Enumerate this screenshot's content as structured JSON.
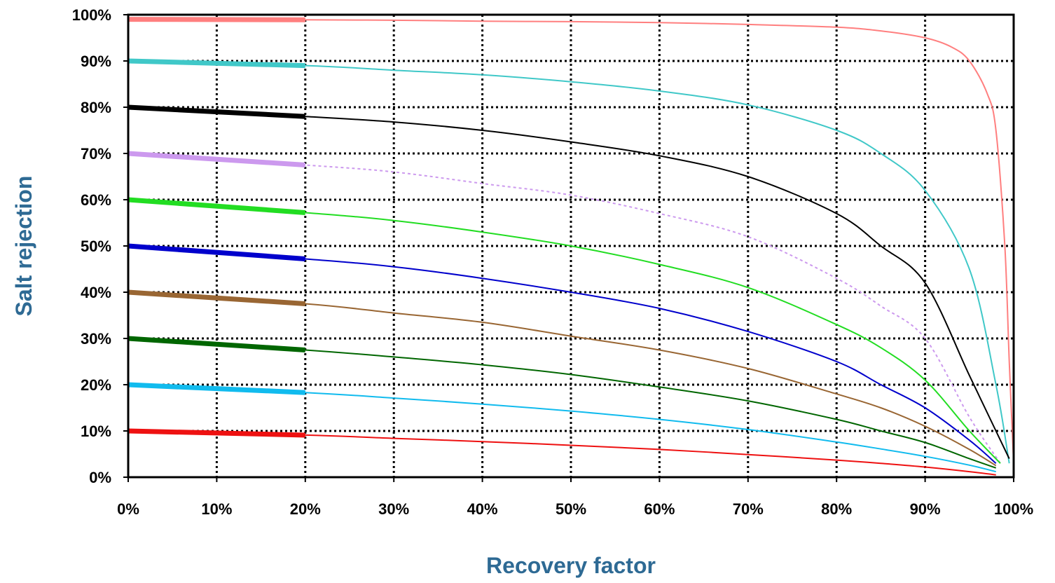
{
  "chart_data": {
    "type": "line",
    "title": "",
    "xlabel": "Recovery factor",
    "ylabel": "Salt rejection",
    "xlim": [
      0,
      100
    ],
    "ylim": [
      0,
      100
    ],
    "x_unit": "%",
    "y_unit": "%",
    "x_ticks": [
      "0%",
      "10%",
      "20%",
      "30%",
      "40%",
      "50%",
      "60%",
      "70%",
      "80%",
      "90%",
      "100%"
    ],
    "y_ticks": [
      "0%",
      "10%",
      "20%",
      "30%",
      "40%",
      "50%",
      "60%",
      "70%",
      "80%",
      "90%",
      "100%"
    ],
    "grid": true,
    "legend": "none",
    "axis_title_color": "#2e6a94",
    "series": [
      {
        "color": "#ff7f7f",
        "dashed": false,
        "x": [
          0,
          20,
          30,
          40,
          50,
          60,
          70,
          80,
          85,
          90,
          93,
          95,
          97,
          98,
          99,
          99.5,
          100
        ],
        "y": [
          99,
          98.9,
          98.8,
          98.6,
          98.5,
          98.3,
          97.9,
          97.3,
          96.5,
          95,
          93,
          90,
          83,
          75,
          50,
          25,
          3
        ]
      },
      {
        "color": "#40c8c8",
        "dashed": false,
        "x": [
          0,
          20,
          30,
          40,
          50,
          60,
          70,
          80,
          85,
          90,
          95,
          98,
          99.5
        ],
        "y": [
          90,
          89,
          88,
          87,
          85.5,
          83.5,
          80.5,
          75,
          70,
          62,
          45,
          20,
          3
        ]
      },
      {
        "color": "#000000",
        "dashed": false,
        "x": [
          0,
          20,
          30,
          40,
          50,
          60,
          70,
          80,
          85,
          90,
          95,
          98,
          99.5
        ],
        "y": [
          80,
          78,
          76.8,
          75,
          72.5,
          69.5,
          65,
          57,
          50,
          42,
          22,
          10,
          4
        ]
      },
      {
        "color": "#cc99ee",
        "dashed": true,
        "x": [
          0,
          20,
          30,
          40,
          50,
          60,
          70,
          80,
          85,
          90,
          95,
          98.5
        ],
        "y": [
          70,
          67.5,
          66,
          63.5,
          61,
          57,
          52,
          43,
          37,
          30,
          13,
          3
        ]
      },
      {
        "color": "#22dd22",
        "dashed": false,
        "x": [
          0,
          20,
          30,
          40,
          50,
          60,
          70,
          80,
          85,
          90,
          95,
          98.5
        ],
        "y": [
          60,
          57.2,
          55.5,
          53,
          50,
          46,
          41,
          33,
          28,
          21,
          10,
          3
        ]
      },
      {
        "color": "#0000cc",
        "dashed": false,
        "x": [
          0,
          20,
          30,
          40,
          50,
          60,
          70,
          80,
          85,
          90,
          95,
          98
        ],
        "y": [
          50,
          47.2,
          45.5,
          43,
          40,
          36.5,
          31.5,
          25,
          20,
          15,
          8,
          3
        ]
      },
      {
        "color": "#996633",
        "dashed": false,
        "x": [
          0,
          20,
          30,
          40,
          50,
          60,
          70,
          80,
          85,
          90,
          95,
          98
        ],
        "y": [
          40,
          37.5,
          35.5,
          33.5,
          30.5,
          27.5,
          23.5,
          18,
          15,
          11,
          6,
          2.5
        ]
      },
      {
        "color": "#006600",
        "dashed": false,
        "x": [
          0,
          20,
          30,
          40,
          50,
          60,
          70,
          80,
          85,
          90,
          95,
          98
        ],
        "y": [
          30,
          27.5,
          26,
          24.3,
          22.2,
          19.5,
          16.5,
          12.5,
          10,
          7.5,
          4,
          2
        ]
      },
      {
        "color": "#11bbee",
        "dashed": false,
        "x": [
          0,
          20,
          30,
          40,
          50,
          60,
          70,
          80,
          85,
          90,
          95,
          98
        ],
        "y": [
          20,
          18.3,
          17.1,
          15.8,
          14.3,
          12.5,
          10.3,
          7.6,
          6.1,
          4.5,
          2.6,
          1.2
        ]
      },
      {
        "color": "#ee1111",
        "dashed": false,
        "x": [
          0,
          20,
          30,
          40,
          50,
          60,
          70,
          80,
          85,
          90,
          95,
          98
        ],
        "y": [
          10,
          9.1,
          8.4,
          7.7,
          6.9,
          6,
          4.9,
          3.7,
          3,
          2.2,
          1.2,
          0.5
        ]
      }
    ]
  }
}
